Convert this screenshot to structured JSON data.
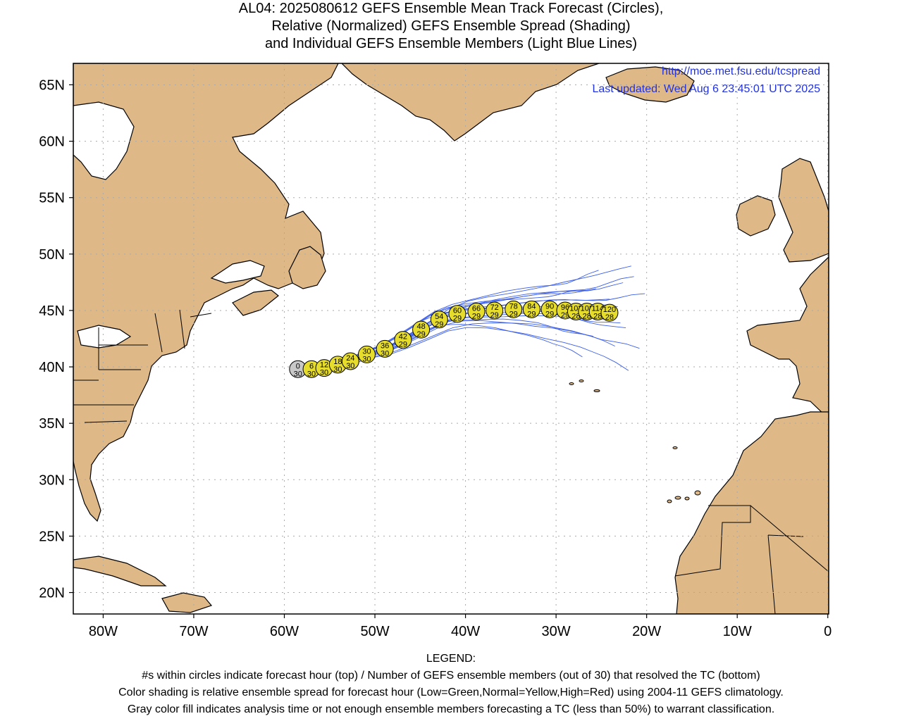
{
  "title": {
    "line1": "AL04: 2025080612 GEFS Ensemble Mean Track Forecast (Circles),",
    "line2": "Relative (Normalized) GEFS Ensemble Spread (Shading)",
    "line3": "and Individual GEFS Ensemble Members (Light Blue Lines)"
  },
  "source": {
    "url": "http://moe.met.fsu.edu/tcspread",
    "updated": "Last updated: Wed Aug 6 23:45:01 UTC 2025"
  },
  "axes": {
    "lat_labels": [
      "65N",
      "60N",
      "55N",
      "50N",
      "45N",
      "40N",
      "35N",
      "30N",
      "25N",
      "20N"
    ],
    "lat_values": [
      65,
      60,
      55,
      50,
      45,
      40,
      35,
      30,
      25,
      20
    ],
    "lon_labels": [
      "80W",
      "70W",
      "60W",
      "50W",
      "40W",
      "30W",
      "20W",
      "10W",
      "0"
    ],
    "lon_values": [
      -80,
      -70,
      -60,
      -50,
      -40,
      -30,
      -20,
      -10,
      0
    ],
    "lon_range": [
      -83.3,
      0.1
    ],
    "lat_range": [
      18.1,
      66.9
    ]
  },
  "colors": {
    "land": "#deb887",
    "grid": "#aaaaaa",
    "member_line": "#3b5ee8",
    "circle_normal": "#e6dc2b",
    "circle_gray": "#c8c8c8"
  },
  "track": [
    {
      "hour": "0",
      "members": "30",
      "lon": -58.5,
      "lat": 39.8,
      "color": "gray"
    },
    {
      "hour": "6",
      "members": "30",
      "lon": -57.0,
      "lat": 39.8,
      "color": "yellow"
    },
    {
      "hour": "12",
      "members": "30",
      "lon": -55.6,
      "lat": 39.9,
      "color": "yellow"
    },
    {
      "hour": "18",
      "members": "30",
      "lon": -54.1,
      "lat": 40.2,
      "color": "yellow"
    },
    {
      "hour": "24",
      "members": "30",
      "lon": -52.7,
      "lat": 40.5,
      "color": "yellow"
    },
    {
      "hour": "30",
      "members": "30",
      "lon": -50.9,
      "lat": 41.1,
      "color": "yellow"
    },
    {
      "hour": "36",
      "members": "30",
      "lon": -48.9,
      "lat": 41.6,
      "color": "yellow"
    },
    {
      "hour": "42",
      "members": "29",
      "lon": -46.9,
      "lat": 42.4,
      "color": "yellow"
    },
    {
      "hour": "48",
      "members": "29",
      "lon": -44.9,
      "lat": 43.3,
      "color": "yellow"
    },
    {
      "hour": "54",
      "members": "29",
      "lon": -42.9,
      "lat": 44.2,
      "color": "yellow"
    },
    {
      "hour": "60",
      "members": "29",
      "lon": -40.9,
      "lat": 44.7,
      "color": "yellow"
    },
    {
      "hour": "66",
      "members": "29",
      "lon": -38.8,
      "lat": 44.9,
      "color": "yellow"
    },
    {
      "hour": "72",
      "members": "29",
      "lon": -36.8,
      "lat": 45.0,
      "color": "yellow"
    },
    {
      "hour": "78",
      "members": "29",
      "lon": -34.7,
      "lat": 45.1,
      "color": "yellow"
    },
    {
      "hour": "84",
      "members": "29",
      "lon": -32.7,
      "lat": 45.1,
      "color": "yellow"
    },
    {
      "hour": "90",
      "members": "29",
      "lon": -30.7,
      "lat": 45.1,
      "color": "yellow"
    },
    {
      "hour": "96",
      "members": "29",
      "lon": -29.0,
      "lat": 45.0,
      "color": "yellow"
    },
    {
      "hour": "102",
      "members": "28",
      "lon": -27.8,
      "lat": 44.9,
      "color": "yellow"
    },
    {
      "hour": "108",
      "members": "28",
      "lon": -26.6,
      "lat": 44.9,
      "color": "yellow"
    },
    {
      "hour": "114",
      "members": "28",
      "lon": -25.4,
      "lat": 44.9,
      "color": "yellow"
    },
    {
      "hour": "120",
      "members": "28",
      "lon": -24.1,
      "lat": 44.8,
      "color": "yellow"
    }
  ],
  "legend": {
    "heading": "LEGEND:",
    "line1": "#s within circles indicate forecast hour (top) / Number of GEFS ensemble members (out of 30) that resolved the TC (bottom)",
    "line2": "Color shading is relative ensemble spread for forecast hour (Low=Green,Normal=Yellow,High=Red) using 2004-11 GEFS climatology.",
    "line3": "Gray color fill indicates analysis time or not enough ensemble members forecasting a TC (less than 50%) to warrant classification."
  }
}
